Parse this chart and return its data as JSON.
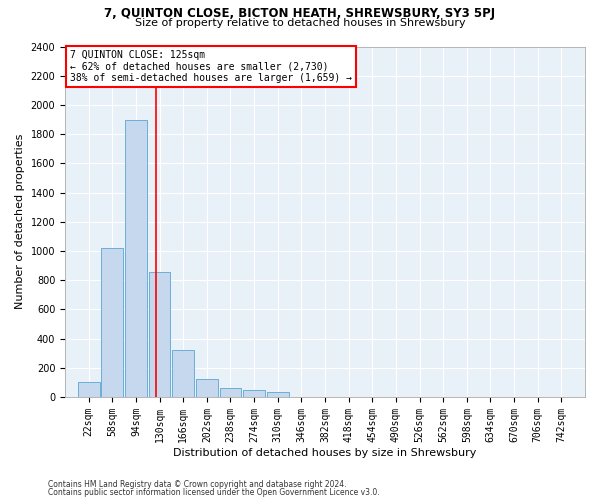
{
  "title_line1": "7, QUINTON CLOSE, BICTON HEATH, SHREWSBURY, SY3 5PJ",
  "title_line2": "Size of property relative to detached houses in Shrewsbury",
  "xlabel": "Distribution of detached houses by size in Shrewsbury",
  "ylabel": "Number of detached properties",
  "bar_color": "#c5d8ed",
  "bar_edge_color": "#6aaed6",
  "bg_color": "#e8f0f8",
  "grid_color": "white",
  "annotation_line1": "7 QUINTON CLOSE: 125sqm",
  "annotation_line2": "← 62% of detached houses are smaller (2,730)",
  "annotation_line3": "38% of semi-detached houses are larger (1,659) →",
  "vline_x": 125,
  "vline_color": "red",
  "categories": [
    "22sqm",
    "58sqm",
    "94sqm",
    "130sqm",
    "166sqm",
    "202sqm",
    "238sqm",
    "274sqm",
    "310sqm",
    "346sqm",
    "382sqm",
    "418sqm",
    "454sqm",
    "490sqm",
    "526sqm",
    "562sqm",
    "598sqm",
    "634sqm",
    "670sqm",
    "706sqm",
    "742sqm"
  ],
  "bin_edges": [
    22,
    58,
    94,
    130,
    166,
    202,
    238,
    274,
    310,
    346,
    382,
    418,
    454,
    490,
    526,
    562,
    598,
    634,
    670,
    706,
    742
  ],
  "bin_width": 36,
  "values": [
    100,
    1020,
    1900,
    855,
    320,
    125,
    60,
    50,
    35,
    0,
    0,
    0,
    0,
    0,
    0,
    0,
    0,
    0,
    0,
    0,
    0
  ],
  "ylim": [
    0,
    2400
  ],
  "yticks": [
    0,
    200,
    400,
    600,
    800,
    1000,
    1200,
    1400,
    1600,
    1800,
    2000,
    2200,
    2400
  ],
  "footer_line1": "Contains HM Land Registry data © Crown copyright and database right 2024.",
  "footer_line2": "Contains public sector information licensed under the Open Government Licence v3.0.",
  "title1_fontsize": 8.5,
  "title2_fontsize": 8.0,
  "ylabel_fontsize": 8.0,
  "xlabel_fontsize": 8.0,
  "tick_fontsize": 7.0,
  "footer_fontsize": 5.5,
  "annot_fontsize": 7.0
}
